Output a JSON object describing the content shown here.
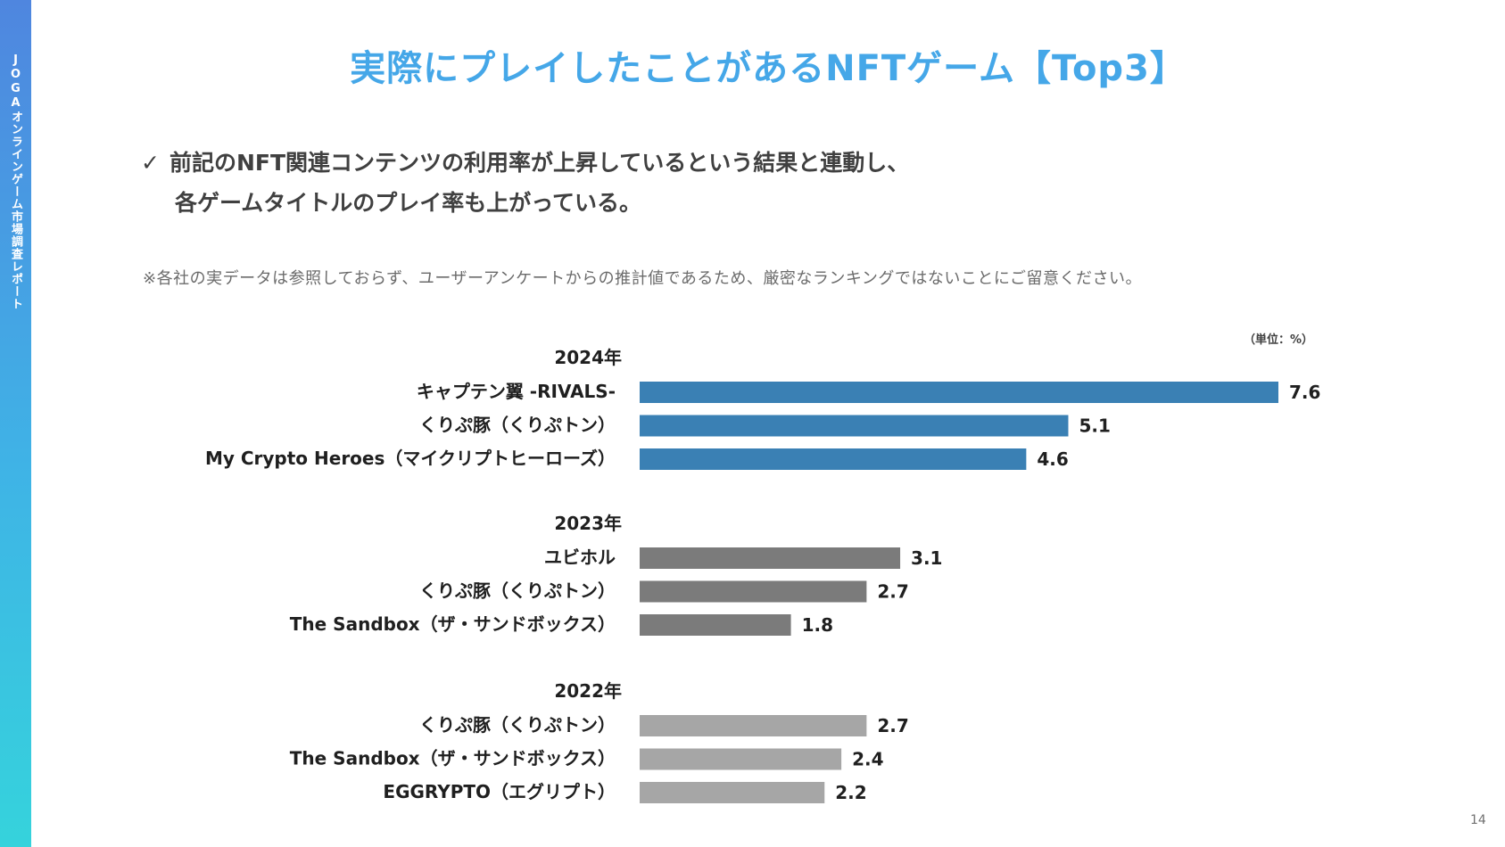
{
  "sidebar": {
    "text": "JOGAオンラインゲーム市場調査レポート"
  },
  "title": "実際にプレイしたことがあるNFTゲーム【Top3】",
  "bullet": {
    "mark": "✓",
    "line1": "前記のNFT関連コンテンツの利用率が上昇しているという結果と連動し、",
    "line2": "各ゲームタイトルのプレイ率も上がっている。"
  },
  "note": "※各社の実データは参照しておらず、ユーザーアンケートからの推計値であるため、厳密なランキングではないことにご留意ください。",
  "unit_label": "（単位：%）",
  "page_number": "14",
  "colors": {
    "y2024": "#3a80b4",
    "y2023": "#7b7b7b",
    "y2022": "#a6a6a6"
  },
  "chart_data": {
    "type": "bar",
    "orientation": "horizontal",
    "unit": "%",
    "groups": [
      {
        "year": "2024年",
        "items": [
          {
            "label": "キャプテン翼 -RIVALS-",
            "value": 7.6,
            "value_label": "7.6"
          },
          {
            "label": "くりぷ豚（くりぷトン）",
            "value": 5.1,
            "value_label": "5.1"
          },
          {
            "label": "My Crypto Heroes（マイクリプトヒーローズ）",
            "value": 4.6,
            "value_label": "4.6"
          }
        ]
      },
      {
        "year": "2023年",
        "items": [
          {
            "label": "ユビホル",
            "value": 3.1,
            "value_label": "3.1"
          },
          {
            "label": "くりぷ豚（くりぷトン）",
            "value": 2.7,
            "value_label": "2.7"
          },
          {
            "label": "The Sandbox（ザ・サンドボックス）",
            "value": 1.8,
            "value_label": "1.8"
          }
        ]
      },
      {
        "year": "2022年",
        "items": [
          {
            "label": "くりぷ豚（くりぷトン）",
            "value": 2.7,
            "value_label": "2.7"
          },
          {
            "label": "The Sandbox（ザ・サンドボックス）",
            "value": 2.4,
            "value_label": "2.4"
          },
          {
            "label": "EGGRYPTO（エグリプト）",
            "value": 2.2,
            "value_label": "2.2"
          }
        ]
      }
    ]
  }
}
